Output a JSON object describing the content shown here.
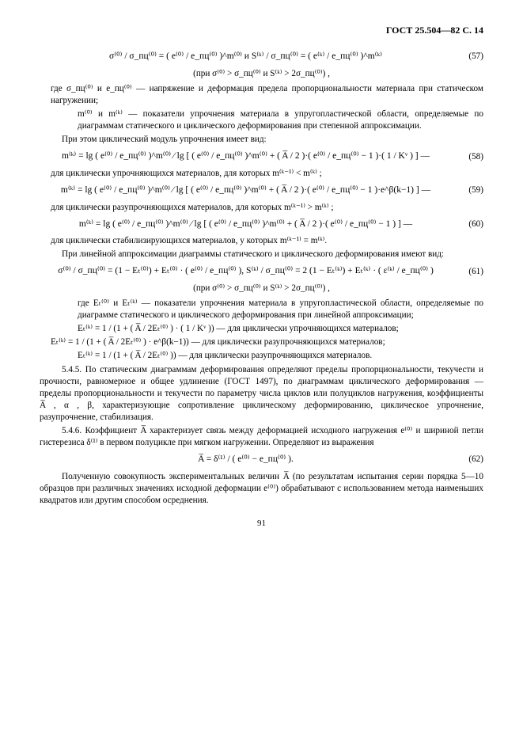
{
  "header": "ГОСТ 25.504—82 С. 14",
  "pageNumber": "91",
  "eq57": {
    "formula": "σ⁽⁰⁾ / σ_пц⁽⁰⁾ = ( e⁽⁰⁾ / e_пц⁽⁰⁾ )^m⁽⁰⁾   и   S⁽ᵏ⁾ / σ_пц⁽⁰⁾ = ( e⁽ᵏ⁾ / e_пц⁽⁰⁾ )^m⁽ᵏ⁾",
    "num": "(57)"
  },
  "cond57": "(при σ⁽⁰⁾ > σ_пц⁽⁰⁾   и   S⁽ᵏ⁾ > 2σ_пц⁽⁰⁾) ,",
  "p1a": "где σ_пц⁽⁰⁾ и e_пц⁽⁰⁾ — напряжение и деформация предела пропорциональности материала при статическом нагружении;",
  "p1b": "m⁽⁰⁾ и m⁽ᵏ⁾ — показатели упрочнения материала в упругопластической области, определяемые по диаграммам статического и циклического деформирования при степенной аппроксимации.",
  "p2": "При этом циклический модуль упрочнения имеет вид:",
  "eq58": {
    "formula": "m⁽ᵏ⁾ = lg ( e⁽⁰⁾ / e_пц⁽⁰⁾ )^m⁽⁰⁾  ⁄  lg [ ( e⁽⁰⁾ / e_пц⁽⁰⁾ )^m⁽⁰⁾ + ( A̅ / 2 )·( e⁽⁰⁾ / e_пц⁽⁰⁾ − 1 )·( 1 / Kᵛ ) ] —",
    "num": "(58)"
  },
  "p3": "для циклически упрочняющихся материалов, для которых m⁽ᵏ⁻¹⁾ < m⁽ᵏ⁾ ;",
  "eq59": {
    "formula": "m⁽ᵏ⁾ = lg ( e⁽⁰⁾ / e_пц⁽⁰⁾ )^m⁽⁰⁾  ⁄  lg [ ( e⁽⁰⁾ / e_пц⁽⁰⁾ )^m⁽⁰⁾ + ( A̅ / 2 )·( e⁽⁰⁾ / e_пц⁽⁰⁾ − 1 )·e^β(k−1) ] —",
    "num": "(59)"
  },
  "p4": "для циклически разупрочняющихся материалов, для которых m⁽ᵏ⁻¹⁾ > m⁽ᵏ⁾ ;",
  "eq60": {
    "formula": "m⁽ᵏ⁾ = lg ( e⁽⁰⁾ / e_пц⁽⁰⁾ )^m⁽⁰⁾  ⁄  lg [ ( e⁽⁰⁾ / e_пц⁽⁰⁾ )^m⁽⁰⁾ + ( A̅ / 2 )·( e⁽⁰⁾ / e_пц⁽⁰⁾ − 1 ) ] —",
    "num": "(60)"
  },
  "p5": "для циклически стабилизирующихся материалов, у которых m⁽ᵏ⁻¹⁾ = m⁽ᵏ⁾.",
  "p6": "При линейной аппроксимации диаграммы статического и циклического деформирования имеют вид:",
  "eq61": {
    "formula": "σ⁽⁰⁾ / σ_пц⁽⁰⁾ = (1 − Eₜ⁽⁰⁾) + Eₜ⁽⁰⁾ · ( e⁽⁰⁾ / e_пц⁽⁰⁾ ),     S⁽ᵏ⁾ / σ_пц⁽⁰⁾ = 2 (1 − Eₜ⁽ᵏ⁾) + Eₜ⁽ᵏ⁾ · ( ε⁽ᵏ⁾ / e_пц⁽⁰⁾ )",
    "num": "(61)"
  },
  "cond61": "(при σ⁽⁰⁾ > σ_пц⁽⁰⁾   и   S⁽ᵏ⁾ > 2σ_пц⁽⁰⁾) ,",
  "p7a": "где Eₜ⁽⁰⁾ и Eₜ⁽ᵏ⁾ — показатели упрочнения материала в упругопластической области, определяемые по диаграмме статического и циклического деформирования при линейной аппроксимации;",
  "p7b": "Eₜ⁽ᵏ⁾ = 1 / (1 + ( A̅ / 2Eₜ⁽⁰⁾ ) · ( 1 / Kᵛ )) — для циклически упрочняющихся материалов;",
  "p7c": "Eₜ⁽ᵏ⁾ = 1 / (1 + ( A̅ / 2Eₜ⁽⁰⁾ ) · e^β(k−1)) — для циклически разупрочняющихся материалов;",
  "p7d": "Eₜ⁽ᵏ⁾ = 1 / (1 + ( A̅ / 2Eₜ⁽⁰⁾ ))   — для циклически разупрочняющихся материалов.",
  "p545": "5.4.5.  По статическим диаграммам деформирования определяют пределы пропорциональности, текучести и прочности,  равномерное и общее удлинение (ГОСТ 1497), по диаграммам циклического деформирования — пределы пропорциональности и текучести по параметру числа циклов или полуциклов нагружения, коэффициенты A̅ , α , β, характеризующие сопротивление циклическому деформированию, циклическое упрочнение, разупрочнение, стабилизация.",
  "p546": "5.4.6.   Коэффициент A̅ характеризует связь между деформацией исходного нагружения e⁽⁰⁾ и шириной петли гистерезиса δ⁽¹⁾ в первом полуцикле при мягком нагружении. Определяют из выражения",
  "eq62": {
    "formula": "A̅ = δ⁽¹⁾ / ( e⁽⁰⁾ − e_пц⁽⁰⁾ ).",
    "num": "(62)"
  },
  "p8": "Полученную совокупность экспериментальных величин A̅ (по результатам испытания серии порядка 5—10 образцов при различных значениях исходной деформации e⁽⁰⁾) обрабатывают с использованием метода наименьших квадратов или другим способом осреднения."
}
